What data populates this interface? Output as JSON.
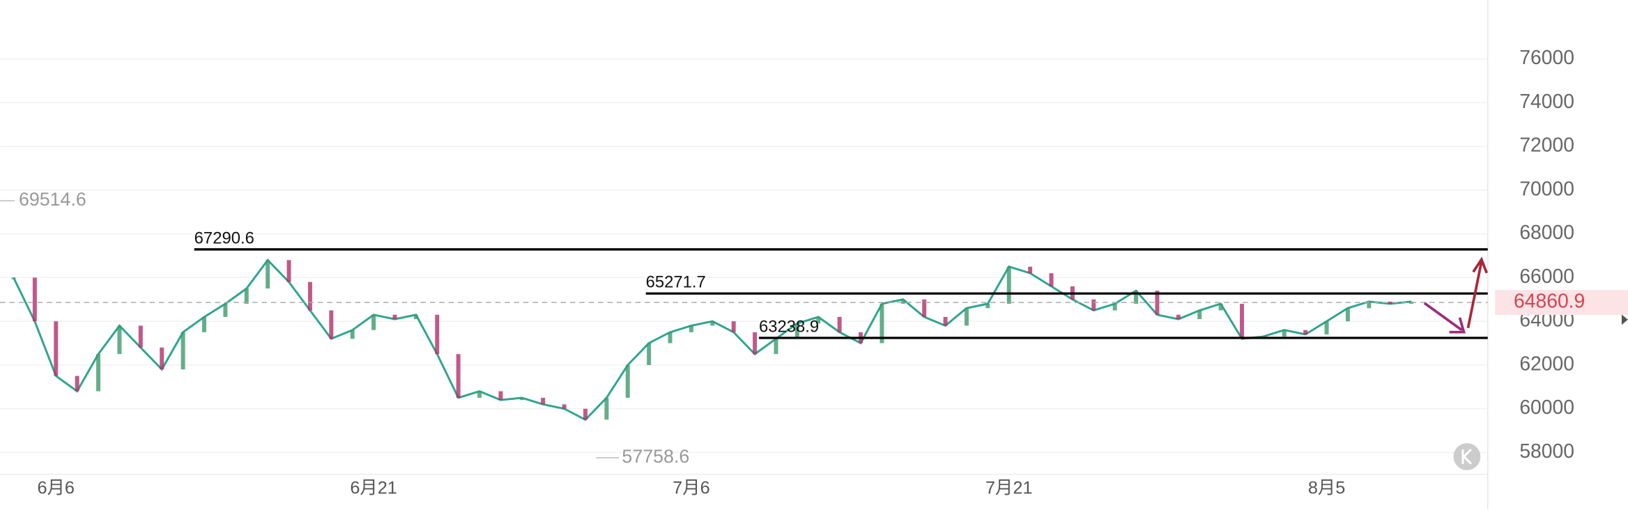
{
  "chart_data": {
    "type": "line",
    "categories": [
      null,
      null,
      "6月6",
      null,
      null,
      null,
      null,
      null,
      null,
      null,
      null,
      null,
      null,
      null,
      null,
      null,
      null,
      "6月21",
      null,
      null,
      null,
      null,
      null,
      null,
      null,
      null,
      null,
      null,
      null,
      null,
      null,
      null,
      "7月6",
      null,
      null,
      null,
      null,
      null,
      null,
      null,
      null,
      null,
      null,
      null,
      null,
      null,
      null,
      "7月21",
      null,
      null,
      null,
      null,
      null,
      null,
      null,
      null,
      null,
      null,
      null,
      null,
      null,
      null,
      "8月5",
      null,
      null,
      null,
      null
    ],
    "values": [
      66000,
      64000,
      61500,
      60800,
      62500,
      63800,
      62800,
      61800,
      63500,
      64200,
      64800,
      65500,
      66800,
      65800,
      64500,
      63200,
      63600,
      64300,
      64100,
      64300,
      62500,
      60500,
      60800,
      60400,
      60500,
      60200,
      60000,
      59500,
      60500,
      62000,
      63000,
      63500,
      63800,
      64000,
      63500,
      62500,
      63200,
      63900,
      64200,
      63500,
      63000,
      64800,
      65000,
      64200,
      63800,
      64600,
      64800,
      66500,
      66200,
      65600,
      65000,
      64500,
      64800,
      65400,
      64300,
      64100,
      64500,
      64800,
      63200,
      63300,
      63600,
      63400,
      64000,
      64600,
      64900,
      64800,
      64900
    ],
    "color": "#2fa58f",
    "ylim": [
      57000,
      78700
    ],
    "yticks": [
      58000,
      60000,
      62000,
      64000,
      66000,
      68000,
      70000,
      72000,
      74000,
      76000
    ],
    "grid": true,
    "levels": [
      67290.6,
      65271.7,
      63238.9
    ],
    "last_price": 64860.9,
    "high_label": 69514.6,
    "low_label": 57758.6
  }
}
